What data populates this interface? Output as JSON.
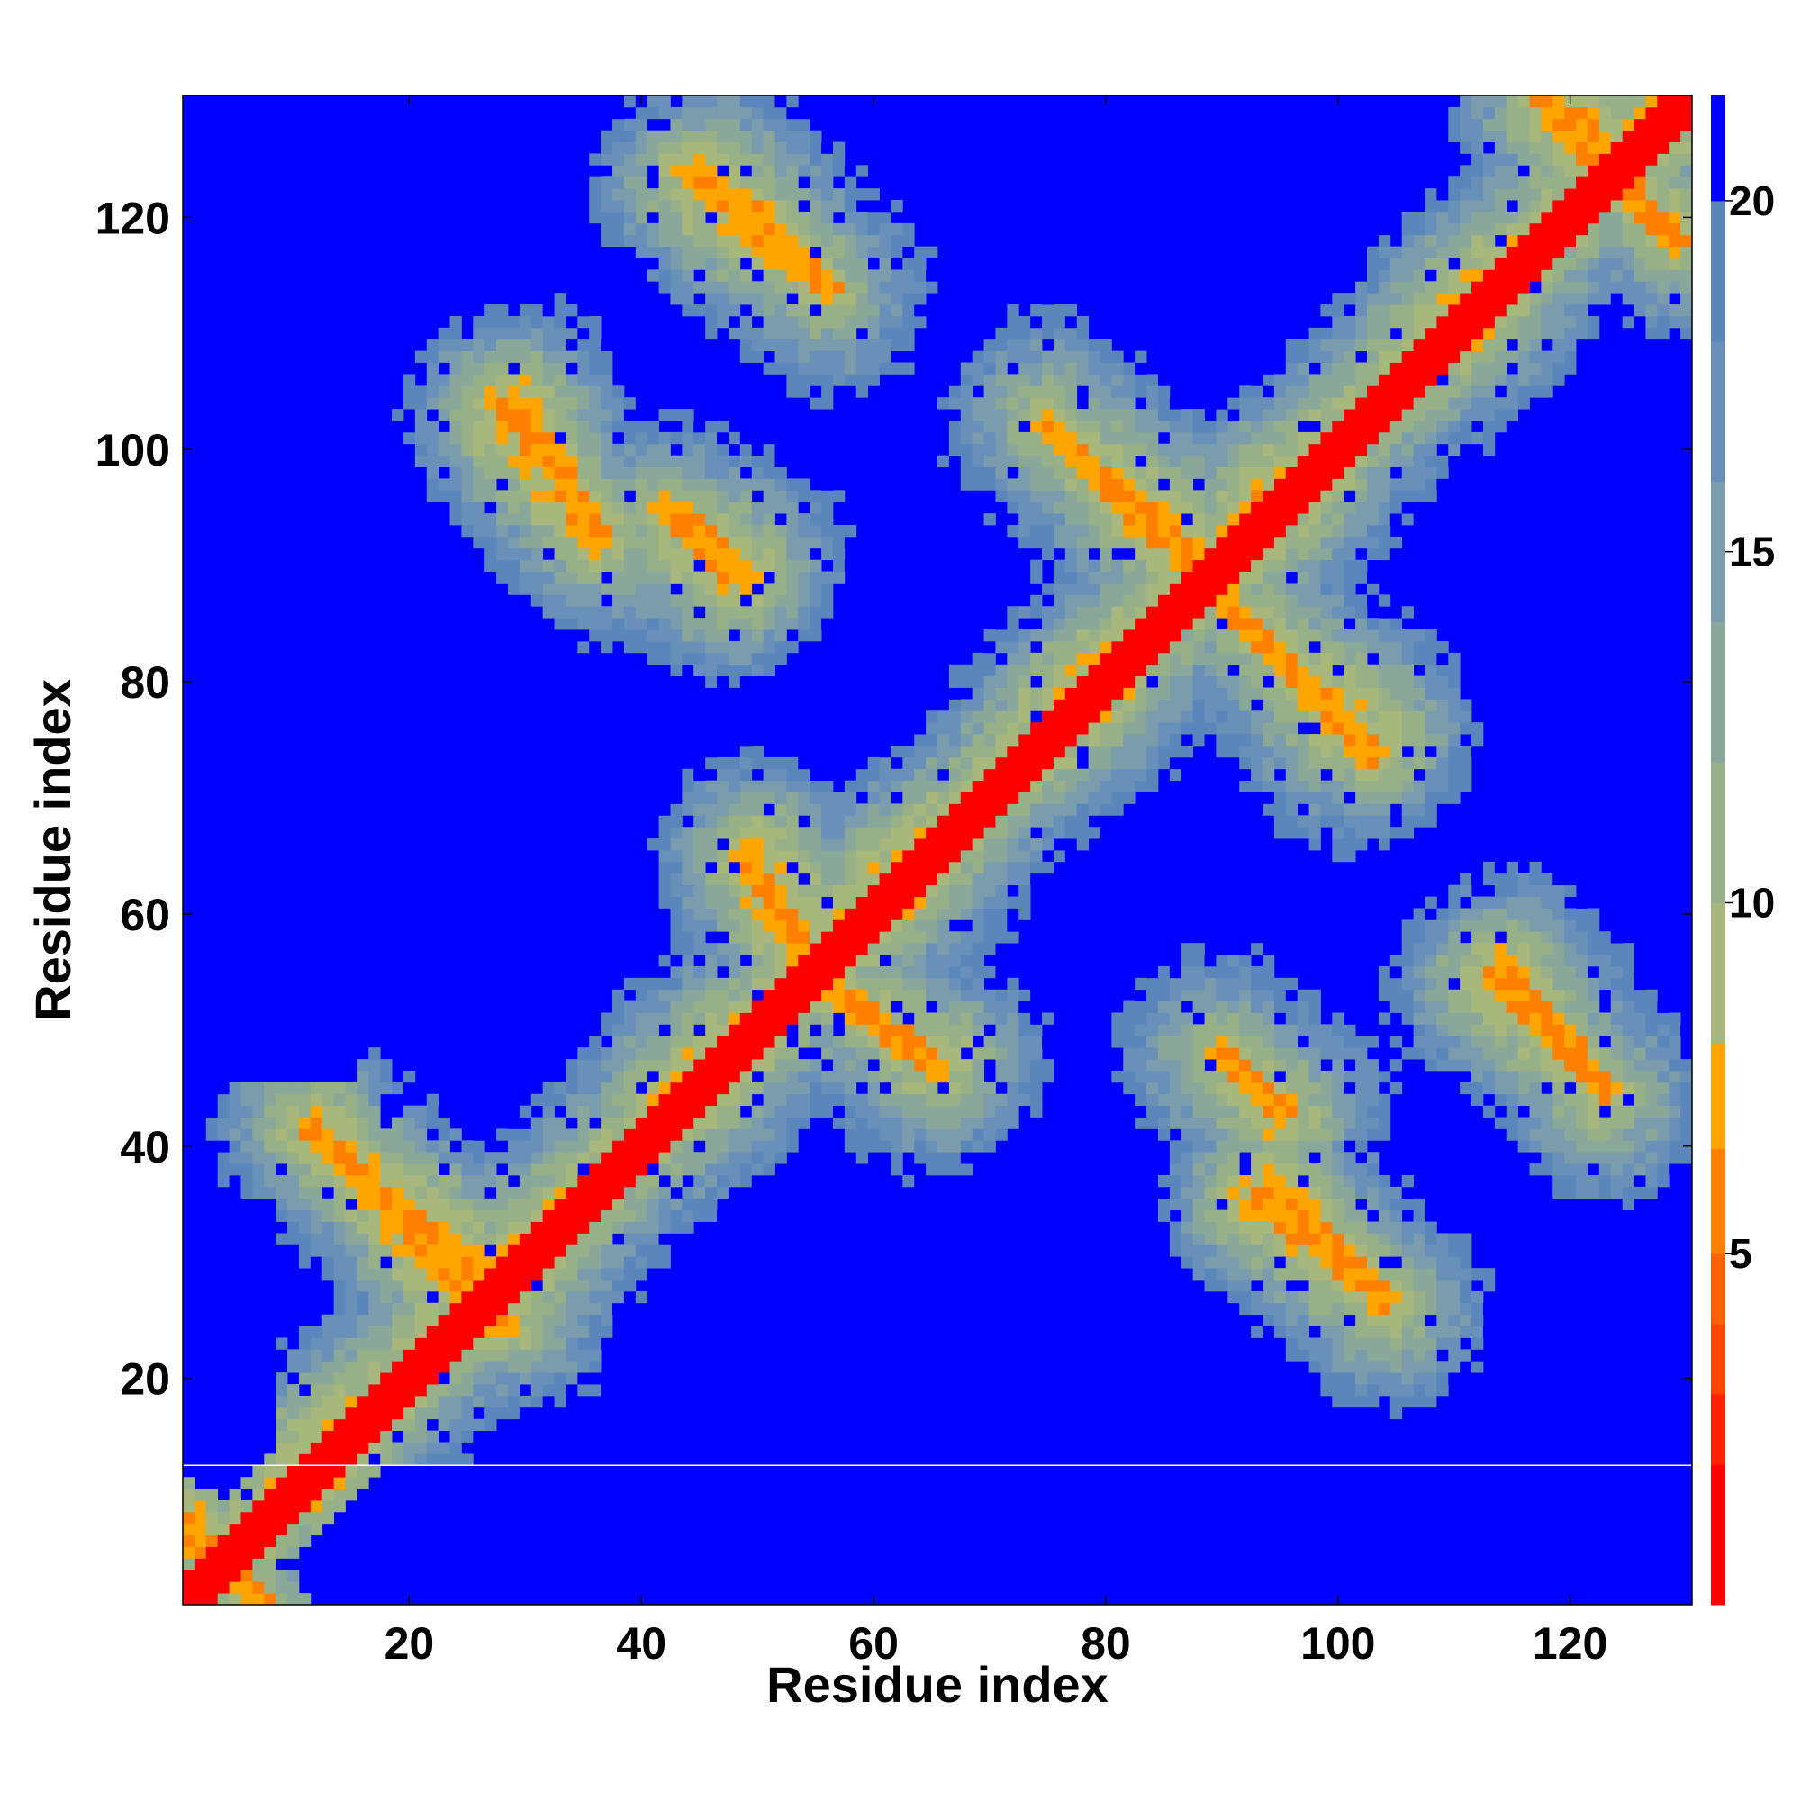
{
  "chart_data": {
    "type": "heatmap",
    "title": "",
    "xlabel": "Residue index",
    "ylabel": "Residue index",
    "n_residues": 130,
    "xlim": [
      1,
      130
    ],
    "ylim": [
      1,
      130
    ],
    "xticks": [
      20,
      40,
      60,
      80,
      100,
      120
    ],
    "yticks": [
      20,
      40,
      60,
      80,
      100,
      120
    ],
    "colorbar": {
      "ticks": [
        5,
        10,
        15,
        20
      ],
      "range": [
        0,
        21.5
      ],
      "bands": [
        {
          "max": 2,
          "color": "#ff0000"
        },
        {
          "max": 3,
          "color": "#ff2200"
        },
        {
          "max": 4,
          "color": "#ff4400"
        },
        {
          "max": 5,
          "color": "#ff6000"
        },
        {
          "max": 6.5,
          "color": "#ff8000"
        },
        {
          "max": 8,
          "color": "#ffa500"
        },
        {
          "max": 10,
          "color": "#a8b87c"
        },
        {
          "max": 12,
          "color": "#98b088"
        },
        {
          "max": 14,
          "color": "#8aa89a"
        },
        {
          "max": 16,
          "color": "#7a9cac"
        },
        {
          "max": 18,
          "color": "#6890b8"
        },
        {
          "max": 20,
          "color": "#5a86bc"
        },
        {
          "max": 21.5,
          "color": "#0000ff"
        }
      ]
    },
    "diagonal_band": {
      "width": 2,
      "value": 1.5
    },
    "contact_segments": [
      {
        "i_start": 12,
        "j_start": 41,
        "i_end": 28,
        "j_end": 25
      },
      {
        "i_start": 29,
        "j_start": 104,
        "i_end": 36,
        "j_end": 93
      },
      {
        "i_start": 42,
        "j_start": 95,
        "i_end": 49,
        "j_end": 89
      },
      {
        "i_start": 45,
        "j_start": 124,
        "i_end": 56,
        "j_end": 114
      },
      {
        "i_start": 49,
        "j_start": 65,
        "i_end": 55,
        "j_end": 55
      },
      {
        "i_start": 56,
        "j_start": 54,
        "i_end": 65,
        "j_end": 47
      },
      {
        "i_start": 75,
        "j_start": 102,
        "i_end": 89,
        "j_end": 89
      },
      {
        "i_start": 89,
        "j_start": 88,
        "i_end": 103,
        "j_end": 74
      },
      {
        "i_start": 90,
        "j_start": 48,
        "i_end": 95,
        "j_end": 43
      },
      {
        "i_start": 94,
        "j_start": 36,
        "i_end": 104,
        "j_end": 27
      },
      {
        "i_start": 114,
        "j_start": 55,
        "i_end": 123,
        "j_end": 45
      },
      {
        "i_start": 118,
        "j_start": 130,
        "i_end": 129,
        "j_end": 118
      },
      {
        "i_start": 1,
        "j_start": 7,
        "i_end": 7,
        "j_end": 1
      }
    ],
    "empty_regions": [
      {
        "i": [
          1,
          130
        ],
        "j": [
          1,
          12
        ],
        "note": "below the horizontal gap the upper triangle is far"
      },
      {
        "i": [
          1,
          15
        ],
        "j": [
          46,
          130
        ]
      },
      {
        "i": [
          1,
          8
        ],
        "j": [
          13,
          35
        ]
      }
    ]
  }
}
